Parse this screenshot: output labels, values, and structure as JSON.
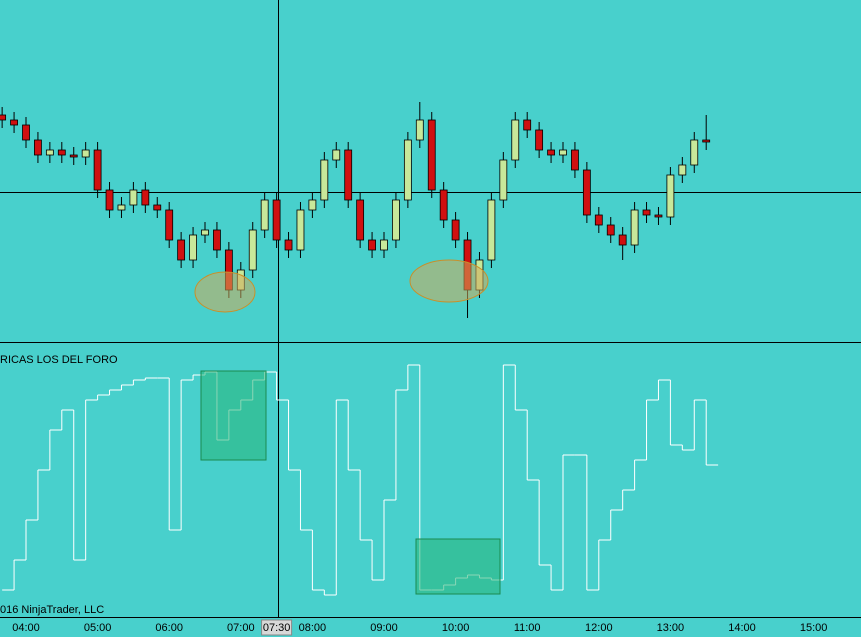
{
  "chart_data": {
    "type": "candlestick",
    "panel_title": "RICAS LOS DEL FORO",
    "copyright": "016 NinjaTrader, LLC",
    "axis_labels": [
      "04:00",
      "05:00",
      "06:00",
      "07:00",
      "08:00",
      "09:00",
      "10:00",
      "11:00",
      "12:00",
      "13:00",
      "14:00",
      "15:00"
    ],
    "cursor_time": "07:30",
    "x": [
      "03:40",
      "03:50",
      "04:00",
      "04:10",
      "04:20",
      "04:30",
      "04:40",
      "04:50",
      "05:00",
      "05:10",
      "05:20",
      "05:30",
      "05:40",
      "05:50",
      "06:00",
      "06:10",
      "06:20",
      "06:30",
      "06:40",
      "06:50",
      "07:00",
      "07:10",
      "07:20",
      "07:30",
      "07:40",
      "07:50",
      "08:00",
      "08:10",
      "08:20",
      "08:30",
      "08:40",
      "08:50",
      "09:00",
      "09:10",
      "09:20",
      "09:30",
      "09:40",
      "09:50",
      "10:00",
      "10:10",
      "10:20",
      "10:30",
      "10:40",
      "10:50",
      "11:00",
      "11:10",
      "11:20",
      "11:30",
      "11:40",
      "11:50",
      "12:00",
      "12:10",
      "12:20",
      "12:30",
      "12:40",
      "12:50",
      "13:00",
      "13:10",
      "13:20",
      "13:30"
    ],
    "ohlc": [
      [
        235,
        243,
        222,
        230
      ],
      [
        230,
        238,
        217,
        225
      ],
      [
        225,
        233,
        202,
        210
      ],
      [
        210,
        218,
        187,
        195
      ],
      [
        195,
        208,
        187,
        200
      ],
      [
        200,
        208,
        187,
        195
      ],
      [
        195,
        203,
        185,
        193
      ],
      [
        193,
        208,
        185,
        200
      ],
      [
        200,
        208,
        152,
        160
      ],
      [
        160,
        168,
        132,
        140
      ],
      [
        140,
        153,
        132,
        145
      ],
      [
        145,
        168,
        137,
        160
      ],
      [
        160,
        168,
        137,
        145
      ],
      [
        145,
        153,
        132,
        140
      ],
      [
        140,
        148,
        102,
        110
      ],
      [
        110,
        118,
        82,
        90
      ],
      [
        90,
        123,
        82,
        115
      ],
      [
        115,
        128,
        107,
        120
      ],
      [
        120,
        128,
        92,
        100
      ],
      [
        100,
        108,
        52,
        60
      ],
      [
        60,
        88,
        52,
        80
      ],
      [
        80,
        128,
        72,
        120
      ],
      [
        120,
        158,
        112,
        150
      ],
      [
        150,
        158,
        102,
        110
      ],
      [
        110,
        118,
        92,
        100
      ],
      [
        100,
        148,
        92,
        140
      ],
      [
        140,
        158,
        132,
        150
      ],
      [
        150,
        198,
        142,
        190
      ],
      [
        190,
        208,
        182,
        200
      ],
      [
        200,
        208,
        142,
        150
      ],
      [
        150,
        158,
        102,
        110
      ],
      [
        110,
        118,
        92,
        100
      ],
      [
        100,
        118,
        92,
        110
      ],
      [
        110,
        158,
        102,
        150
      ],
      [
        150,
        218,
        142,
        210
      ],
      [
        210,
        248,
        202,
        230
      ],
      [
        230,
        238,
        152,
        160
      ],
      [
        160,
        168,
        122,
        130
      ],
      [
        130,
        138,
        102,
        110
      ],
      [
        110,
        118,
        32,
        60
      ],
      [
        60,
        98,
        52,
        90
      ],
      [
        90,
        158,
        82,
        150
      ],
      [
        150,
        198,
        142,
        190
      ],
      [
        190,
        238,
        182,
        230
      ],
      [
        230,
        238,
        212,
        220
      ],
      [
        220,
        228,
        192,
        200
      ],
      [
        200,
        208,
        187,
        195
      ],
      [
        195,
        208,
        187,
        200
      ],
      [
        200,
        208,
        172,
        180
      ],
      [
        180,
        188,
        127,
        135
      ],
      [
        135,
        143,
        117,
        125
      ],
      [
        125,
        133,
        107,
        115
      ],
      [
        115,
        123,
        90,
        105
      ],
      [
        105,
        148,
        97,
        140
      ],
      [
        140,
        148,
        127,
        135
      ],
      [
        135,
        143,
        125,
        133
      ],
      [
        133,
        183,
        125,
        175
      ],
      [
        175,
        193,
        167,
        185
      ],
      [
        185,
        218,
        177,
        210
      ],
      [
        210,
        235,
        200,
        208
      ]
    ],
    "ylim": [
      8,
      350
    ],
    "indicator": [
      30,
      60,
      100,
      150,
      190,
      210,
      60,
      220,
      225,
      230,
      235,
      240,
      242,
      242,
      90,
      240,
      245,
      248,
      180,
      210,
      220,
      240,
      248,
      220,
      150,
      90,
      30,
      25,
      220,
      150,
      80,
      40,
      120,
      230,
      255,
      30,
      30,
      35,
      42,
      45,
      42,
      40,
      255,
      210,
      140,
      55,
      30,
      165,
      165,
      30,
      80,
      110,
      130,
      160,
      220,
      240,
      175,
      170,
      220,
      155
    ],
    "indicator_ylim": [
      3,
      277
    ],
    "up_color": "#c8e89a",
    "down_color": "#d01010",
    "indicator_color": "#ffffff",
    "background": "#48d0cc"
  }
}
